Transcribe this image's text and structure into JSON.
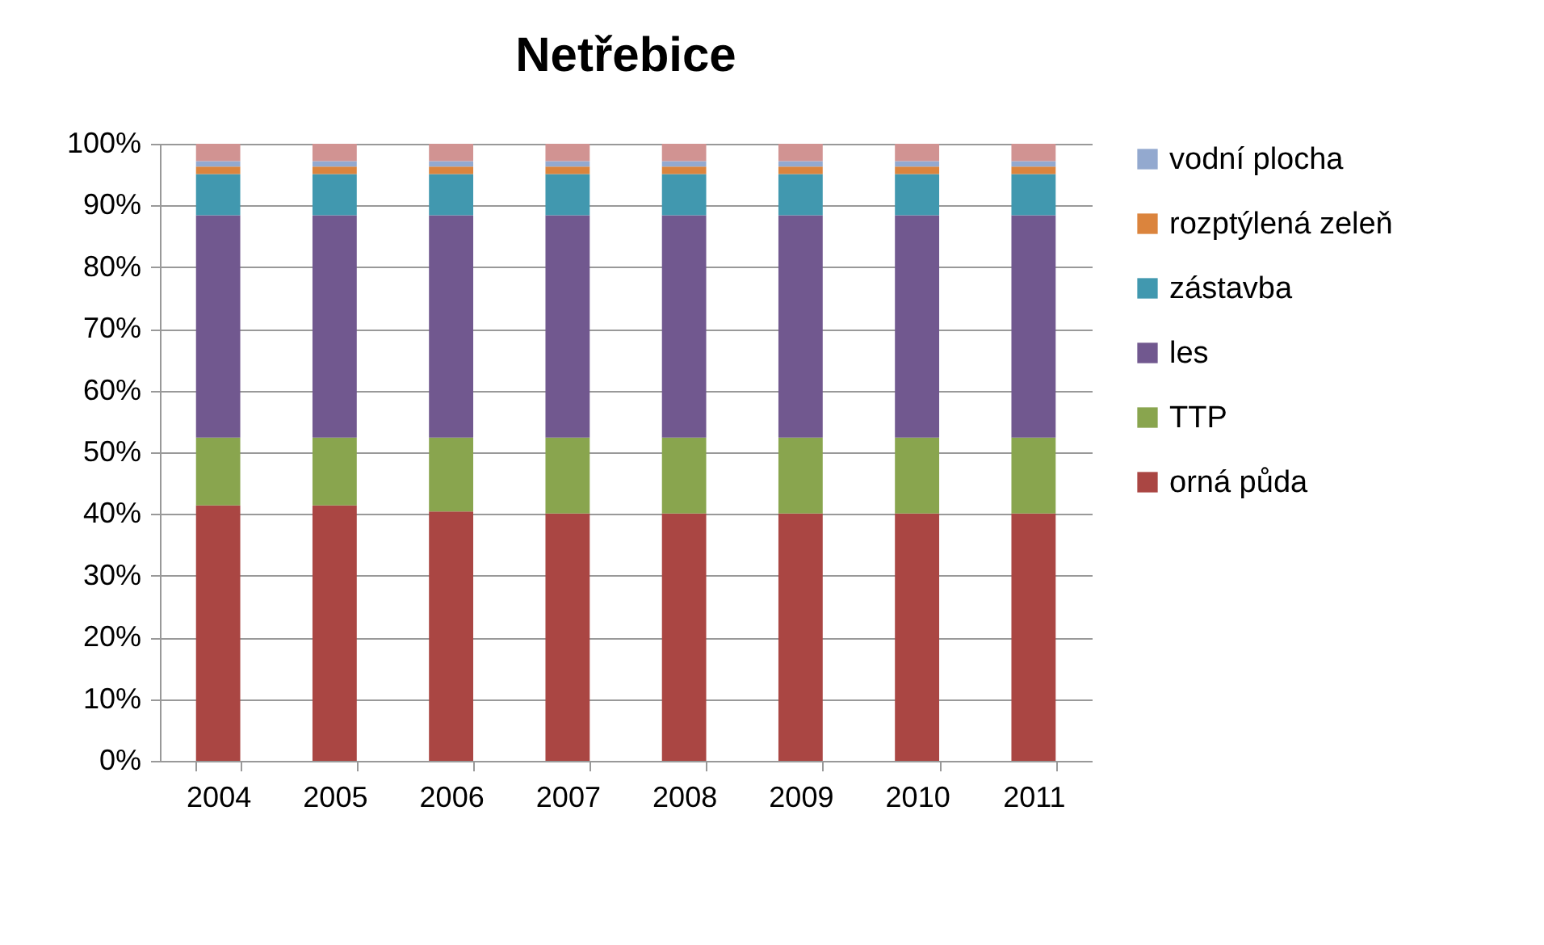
{
  "chart_data": {
    "type": "bar",
    "title": "Netřebice",
    "stacked": true,
    "categories": [
      "2004",
      "2005",
      "2006",
      "2007",
      "2008",
      "2009",
      "2010",
      "2011"
    ],
    "series": [
      {
        "name": "orná půda",
        "color": "#aa4643",
        "values": [
          41.4,
          41.4,
          40.4,
          40.1,
          40.1,
          40.1,
          40.1,
          40.1
        ]
      },
      {
        "name": "TTP",
        "color": "#89a54e",
        "values": [
          11.0,
          11.0,
          12.0,
          12.3,
          12.3,
          12.3,
          12.3,
          12.3
        ]
      },
      {
        "name": "les",
        "color": "#71588f",
        "values": [
          36.0,
          36.0,
          36.0,
          36.0,
          36.0,
          36.0,
          36.0,
          36.0
        ]
      },
      {
        "name": "zástavba",
        "color": "#4198af",
        "values": [
          6.7,
          6.7,
          6.7,
          6.7,
          6.7,
          6.7,
          6.7,
          6.7
        ]
      },
      {
        "name": "rozptýlená zeleň",
        "color": "#db843d",
        "values": [
          1.2,
          1.2,
          1.2,
          1.2,
          1.2,
          1.2,
          1.2,
          1.2
        ]
      },
      {
        "name": "vodní plocha",
        "color": "#93a9cf",
        "values": [
          0.9,
          0.9,
          0.9,
          0.9,
          0.9,
          0.9,
          0.9,
          0.9
        ]
      },
      {
        "color": "#d19392",
        "values": [
          2.8,
          2.8,
          2.8,
          2.8,
          2.8,
          2.8,
          2.8,
          2.8
        ]
      }
    ],
    "ylim": [
      0,
      100
    ],
    "yticks": [
      {
        "value": 0,
        "label": "0%"
      },
      {
        "value": 10,
        "label": "10%"
      },
      {
        "value": 20,
        "label": "20%"
      },
      {
        "value": 30,
        "label": "30%"
      },
      {
        "value": 40,
        "label": "40%"
      },
      {
        "value": 50,
        "label": "50%"
      },
      {
        "value": 60,
        "label": "60%"
      },
      {
        "value": 70,
        "label": "70%"
      },
      {
        "value": 80,
        "label": "80%"
      },
      {
        "value": 90,
        "label": "90%"
      },
      {
        "value": 100,
        "label": "100%"
      }
    ],
    "grid": "y",
    "legend": "right"
  }
}
